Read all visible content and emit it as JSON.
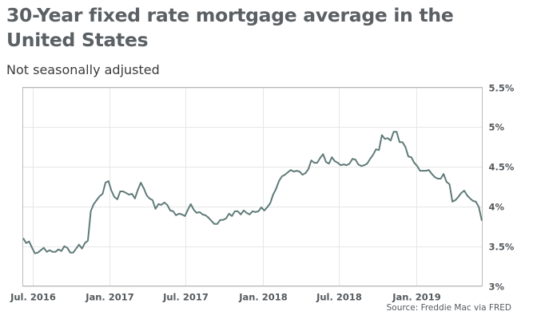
{
  "chart_data": {
    "type": "line",
    "title": "30-Year fixed rate mortgage average in the United States",
    "subtitle": "Not seasonally adjusted",
    "source": "Source: Freddie Mac via FRED",
    "xlabel": "",
    "ylabel": "",
    "xlim": [
      "2016-06-08",
      "2019-06-07"
    ],
    "ylim": [
      3,
      5.5
    ],
    "grid": true,
    "line_color": "#5f7b79",
    "x_ticks": [
      {
        "date": "2016-07-01",
        "label": "Jul. 2016"
      },
      {
        "date": "2017-01-01",
        "label": "Jan. 2017"
      },
      {
        "date": "2017-07-01",
        "label": "Jul. 2017"
      },
      {
        "date": "2018-01-01",
        "label": "Jan. 2018"
      },
      {
        "date": "2018-07-01",
        "label": "Jul. 2018"
      },
      {
        "date": "2019-01-01",
        "label": "Jan. 2019"
      }
    ],
    "y_ticks": [
      {
        "value": 5.5,
        "label": "5.5%"
      },
      {
        "value": 5,
        "label": "5%"
      },
      {
        "value": 4.5,
        "label": "4.5%"
      },
      {
        "value": 4,
        "label": "4%"
      },
      {
        "value": 3.5,
        "label": "3.5%"
      },
      {
        "value": 3,
        "label": "3%"
      }
    ],
    "series": [
      {
        "name": "30-Year fixed rate mortgage average",
        "start": "2016-06-09",
        "interval_days": 7,
        "values": [
          3.6,
          3.54,
          3.56,
          3.48,
          3.41,
          3.42,
          3.45,
          3.48,
          3.43,
          3.45,
          3.43,
          3.43,
          3.46,
          3.44,
          3.5,
          3.48,
          3.42,
          3.42,
          3.47,
          3.52,
          3.47,
          3.54,
          3.57,
          3.94,
          4.03,
          4.08,
          4.13,
          4.16,
          4.3,
          4.32,
          4.2,
          4.12,
          4.09,
          4.19,
          4.19,
          4.17,
          4.15,
          4.16,
          4.1,
          4.21,
          4.3,
          4.23,
          4.14,
          4.1,
          4.08,
          3.97,
          4.03,
          4.02,
          4.05,
          4.02,
          3.95,
          3.94,
          3.89,
          3.91,
          3.9,
          3.88,
          3.96,
          4.03,
          3.96,
          3.92,
          3.93,
          3.9,
          3.89,
          3.86,
          3.82,
          3.78,
          3.78,
          3.83,
          3.83,
          3.85,
          3.91,
          3.88,
          3.94,
          3.94,
          3.9,
          3.95,
          3.92,
          3.9,
          3.94,
          3.93,
          3.94,
          3.99,
          3.95,
          3.99,
          4.04,
          4.15,
          4.22,
          4.32,
          4.38,
          4.4,
          4.43,
          4.46,
          4.44,
          4.45,
          4.44,
          4.4,
          4.42,
          4.47,
          4.58,
          4.55,
          4.55,
          4.61,
          4.66,
          4.56,
          4.54,
          4.62,
          4.57,
          4.55,
          4.52,
          4.53,
          4.52,
          4.54,
          4.6,
          4.59,
          4.53,
          4.51,
          4.52,
          4.54,
          4.6,
          4.65,
          4.72,
          4.71,
          4.9,
          4.85,
          4.86,
          4.83,
          4.94,
          4.94,
          4.81,
          4.81,
          4.75,
          4.63,
          4.62,
          4.55,
          4.51,
          4.45,
          4.45,
          4.45,
          4.46,
          4.41,
          4.37,
          4.35,
          4.35,
          4.41,
          4.31,
          4.28,
          4.06,
          4.08,
          4.12,
          4.17,
          4.2,
          4.14,
          4.1,
          4.07,
          4.06,
          3.99,
          3.82
        ]
      }
    ]
  }
}
